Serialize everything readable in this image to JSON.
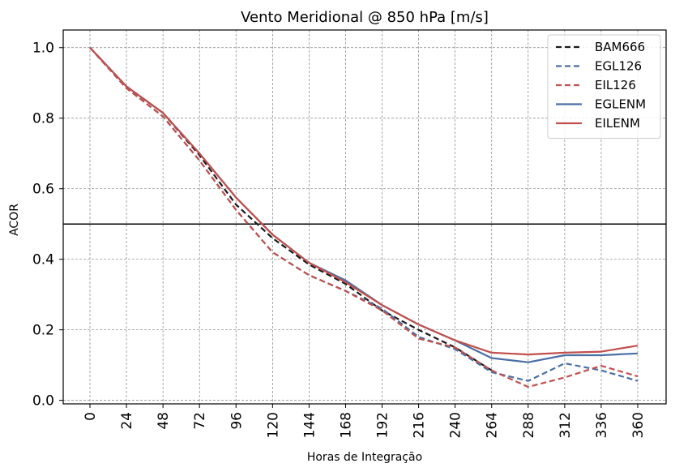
{
  "chart_data": {
    "type": "line",
    "title": "Vento Meridional @ 850 hPa [m/s]",
    "xlabel": "Horas de Integração",
    "ylabel": "ACOR",
    "categories": [
      "0",
      "24",
      "48",
      "72",
      "96",
      "120",
      "144",
      "168",
      "192",
      "216",
      "240",
      "264",
      "288",
      "312",
      "336",
      "360"
    ],
    "ylim": [
      -0.01,
      1.05
    ],
    "yticks": [
      0.0,
      0.2,
      0.4,
      0.6,
      0.8,
      1.0
    ],
    "ytick_labels": [
      "0.0",
      "0.2",
      "0.4",
      "0.6",
      "0.8",
      "1.0"
    ],
    "grid": true,
    "reference_line": 0.5,
    "legend_position": "top-right",
    "series": [
      {
        "name": "BAM666",
        "color": "#1a1a1a",
        "dash": "dashed",
        "values": [
          1.0,
          0.89,
          0.815,
          0.695,
          0.555,
          0.46,
          0.385,
          0.33,
          0.255,
          0.2,
          0.15,
          0.085,
          null,
          null,
          null,
          null
        ]
      },
      {
        "name": "EGL126",
        "color": "#4a6fa5",
        "dash": "dashed",
        "values": [
          1.0,
          0.885,
          0.805,
          0.68,
          0.54,
          0.42,
          0.355,
          0.31,
          0.26,
          0.18,
          0.145,
          0.08,
          0.055,
          0.105,
          0.085,
          0.055
        ]
      },
      {
        "name": "EIL126",
        "color": "#c0504d",
        "dash": "dashed",
        "values": [
          1.0,
          0.885,
          0.805,
          0.68,
          0.54,
          0.42,
          0.355,
          0.31,
          0.255,
          0.175,
          0.15,
          0.085,
          0.038,
          0.065,
          0.098,
          0.068
        ]
      },
      {
        "name": "EGLENM",
        "color": "#4a6fa5",
        "dash": "solid",
        "values": [
          1.0,
          0.89,
          0.815,
          0.7,
          0.575,
          0.47,
          0.39,
          0.34,
          0.27,
          0.215,
          0.17,
          0.12,
          0.108,
          0.128,
          0.128,
          0.133
        ]
      },
      {
        "name": "EILENM",
        "color": "#c0504d",
        "dash": "solid",
        "values": [
          1.0,
          0.89,
          0.815,
          0.7,
          0.575,
          0.47,
          0.39,
          0.335,
          0.27,
          0.215,
          0.17,
          0.135,
          0.13,
          0.135,
          0.138,
          0.155
        ]
      }
    ]
  }
}
